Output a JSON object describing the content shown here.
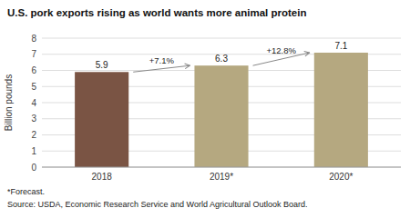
{
  "chart_data": {
    "type": "bar",
    "title": "U.S. pork exports rising as world wants more animal protein",
    "y_label": "Billion pounds",
    "categories": [
      "2018",
      "2019*",
      "2020*"
    ],
    "values": [
      5.9,
      6.3,
      7.1
    ],
    "colors": [
      "#7a5444",
      "#b5a880",
      "#b5a880"
    ],
    "ylim": [
      0,
      8
    ],
    "yticks": [
      0,
      1,
      2,
      3,
      4,
      5,
      6,
      7,
      8
    ],
    "grid": true,
    "data_labels": true,
    "annotations": [
      {
        "from": "2018",
        "to": "2019*",
        "label": "+7.1%"
      },
      {
        "from": "2019*",
        "to": "2020*",
        "label": "+12.8%"
      }
    ],
    "footnotes": [
      "*Forecast.",
      "Source: USDA, Economic Research Service and World Agricultural Outlook Board."
    ]
  }
}
